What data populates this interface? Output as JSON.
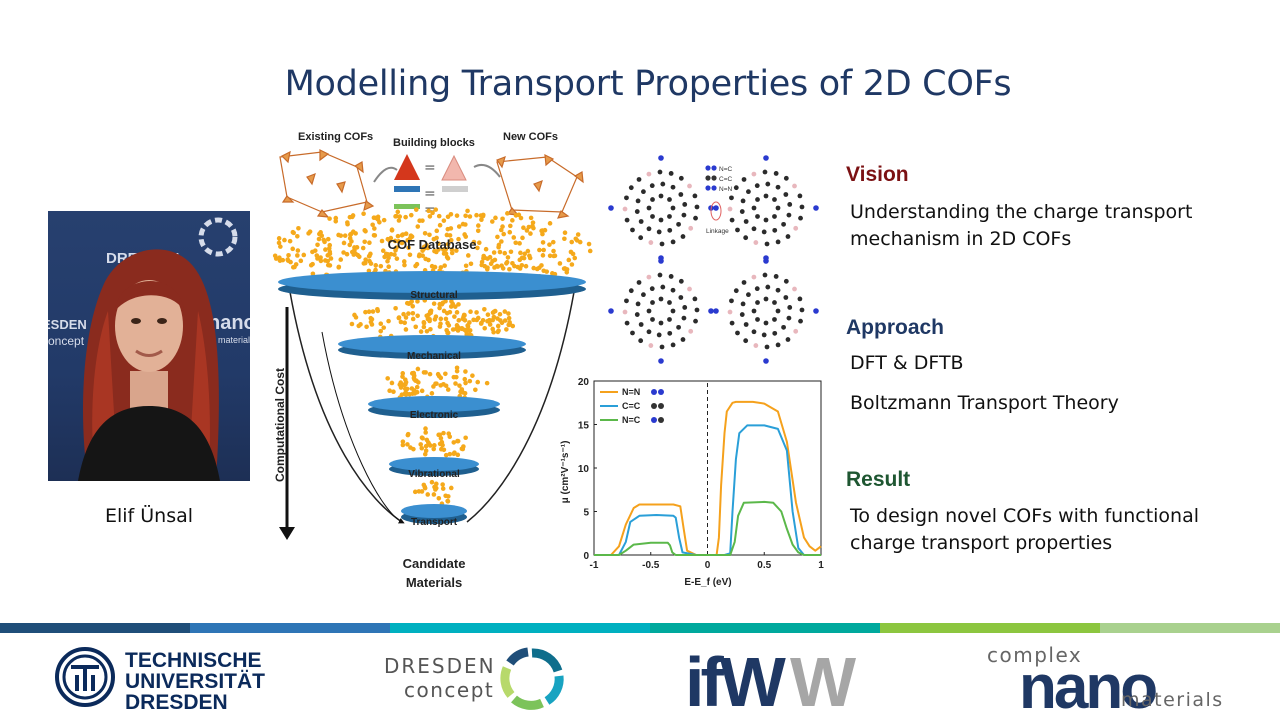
{
  "slide": {
    "title": "Modelling Transport Properties of 2D COFs"
  },
  "person": {
    "name": "Elif Ünsal",
    "backdrop_text_1": "DRESDEN",
    "backdrop_text_2": "ESDEN",
    "backdrop_text_3": "concept",
    "backdrop_text_4": "nano",
    "backdrop_text_5": "materials"
  },
  "funnel": {
    "existing_cofs": "Existing COFs",
    "building_blocks": "Building blocks",
    "new_cofs": "New COFs",
    "database": "COF Database",
    "stages": [
      "Structural",
      "Mechanical",
      "Electronic",
      "Vibrational",
      "Transport"
    ],
    "axis_label": "Computational Cost",
    "output_line1": "Candidate",
    "output_line2": "Materials"
  },
  "structure": {
    "legend": [
      "N=C",
      "C=C",
      "N=N"
    ],
    "linkage_label": "Linkage"
  },
  "sections": {
    "vision_heading": "Vision",
    "vision_line1": "Understanding the charge transport",
    "vision_line2": "mechanism in 2D COFs",
    "approach_heading": "Approach",
    "approach_item1": "DFT & DFTB",
    "approach_item2": "Boltzmann Transport Theory",
    "result_heading": "Result",
    "result_line1": "To design novel COFs with functional",
    "result_line2": "charge transport properties"
  },
  "colors": {
    "title": "#1f3864",
    "vision_heading": "#7b1113",
    "approach_heading": "#1f3864",
    "result_heading": "#1e5631",
    "stripe": [
      "#1f4e79",
      "#2e75b6",
      "#00b0c0",
      "#00a99d",
      "#8cc63f",
      "#a9d18e"
    ]
  },
  "logos": {
    "tud_line1": "TECHNISCHE",
    "tud_line2": "UNIVERSITÄT",
    "tud_line3": "DRESDEN",
    "dresden_concept_line1": "DRESDEN",
    "dresden_concept_line2": "concept",
    "ifw": "ifW",
    "complex_prefix": "complex",
    "nano_word": "nano",
    "materials_word": "materials"
  },
  "chart_data": {
    "type": "line",
    "title": "",
    "xlabel": "E-E_f (eV)",
    "ylabel": "μ (cm²V⁻¹s⁻¹)",
    "xlim": [
      -1,
      1
    ],
    "ylim": [
      0,
      20
    ],
    "xticks": [
      -1,
      -0.5,
      0,
      0.5,
      1
    ],
    "xtick_labels": [
      "-1",
      "-0.5",
      "0",
      "0.5",
      "1"
    ],
    "yticks": [
      0,
      5,
      10,
      15,
      20
    ],
    "ytick_labels": [
      "0",
      "5",
      "10",
      "15",
      "20"
    ],
    "legend_position": "top-left",
    "reference_line_x": 0,
    "series": [
      {
        "name": "N=N",
        "color": "#f5a11c",
        "x": [
          -1,
          -0.85,
          -0.78,
          -0.72,
          -0.65,
          -0.6,
          -0.45,
          -0.3,
          -0.24,
          -0.21,
          -0.18,
          -0.1,
          0,
          0.08,
          0.1,
          0.12,
          0.15,
          0.17,
          0.22,
          0.25,
          0.4,
          0.5,
          0.62,
          0.7,
          0.78,
          0.85,
          0.9,
          0.95,
          1
        ],
        "y": [
          0,
          0,
          1,
          3.5,
          5.4,
          5.8,
          5.8,
          5.8,
          5.6,
          3,
          0.5,
          0,
          0,
          0,
          2,
          8,
          14,
          16.5,
          17.5,
          17.6,
          17.6,
          17.4,
          16.5,
          13,
          6,
          2,
          1,
          0.5,
          1
        ]
      },
      {
        "name": "C=C",
        "color": "#2a9fd8",
        "x": [
          -1,
          -0.85,
          -0.78,
          -0.72,
          -0.68,
          -0.6,
          -0.45,
          -0.3,
          -0.28,
          -0.25,
          -0.22,
          -0.1,
          0,
          0.15,
          0.2,
          0.22,
          0.25,
          0.28,
          0.35,
          0.5,
          0.62,
          0.7,
          0.75,
          0.8,
          0.85,
          0.9,
          1
        ],
        "y": [
          0,
          0,
          0,
          1.5,
          3.8,
          4.5,
          4.6,
          4.5,
          4.3,
          2,
          0.3,
          0,
          0,
          0,
          0.2,
          5,
          11,
          14,
          14.9,
          14.9,
          14.5,
          12,
          5,
          0.8,
          0,
          0,
          0
        ]
      },
      {
        "name": "N=C",
        "color": "#5bb84a",
        "x": [
          -1,
          -0.85,
          -0.78,
          -0.72,
          -0.65,
          -0.5,
          -0.35,
          -0.33,
          -0.31,
          -0.28,
          -0.1,
          0,
          0.15,
          0.2,
          0.24,
          0.27,
          0.32,
          0.5,
          0.58,
          0.65,
          0.7,
          0.75,
          0.8,
          0.85,
          0.9,
          1
        ],
        "y": [
          0,
          0,
          0,
          0.5,
          1.2,
          1.4,
          1.4,
          1.1,
          0.3,
          0,
          0,
          0,
          0,
          0,
          1.5,
          4.5,
          6,
          6.1,
          6,
          5,
          3,
          1.2,
          0.3,
          0,
          0,
          0
        ]
      }
    ]
  }
}
